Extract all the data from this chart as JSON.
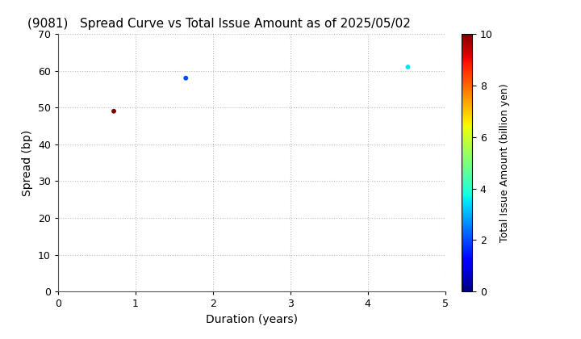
{
  "title": "(9081)   Spread Curve vs Total Issue Amount as of 2025/05/02",
  "xlabel": "Duration (years)",
  "ylabel": "Spread (bp)",
  "colorbar_label": "Total Issue Amount (billion yen)",
  "xlim": [
    0,
    5
  ],
  "ylim": [
    0,
    70
  ],
  "xticks": [
    0,
    1,
    2,
    3,
    4,
    5
  ],
  "yticks": [
    0,
    10,
    20,
    30,
    40,
    50,
    60,
    70
  ],
  "colorbar_min": 0,
  "colorbar_max": 10,
  "colorbar_ticks": [
    0,
    2,
    4,
    6,
    8,
    10
  ],
  "points": [
    {
      "duration": 0.72,
      "spread": 49,
      "amount": 10.0
    },
    {
      "duration": 1.65,
      "spread": 58,
      "amount": 2.0
    },
    {
      "duration": 4.52,
      "spread": 61,
      "amount": 3.5
    }
  ],
  "marker_size": 18,
  "background_color": "#ffffff",
  "grid_color": "#bbbbbb",
  "grid_style": ":"
}
